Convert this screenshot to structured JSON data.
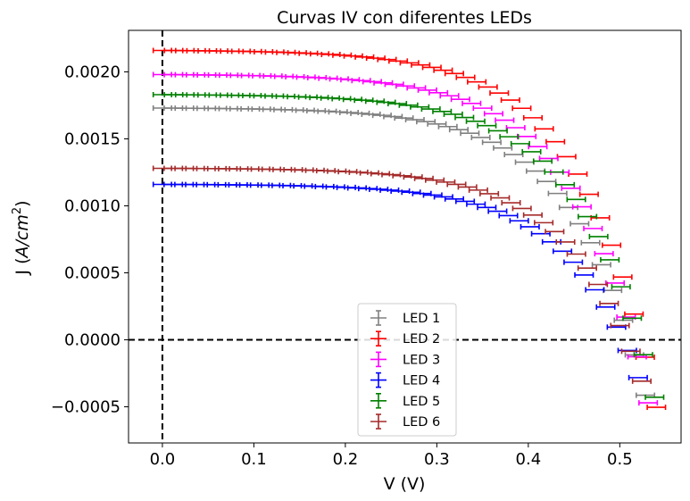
{
  "chart_data": {
    "type": "scatter",
    "title": "Curvas IV con diferentes LEDs",
    "xlabel": "V (V)",
    "ylabel_prefix": "J (",
    "ylabel_italic": "A/cm",
    "ylabel_sup": "2",
    "ylabel_suffix": ")",
    "xlim": [
      -0.037,
      0.567
    ],
    "ylim": [
      -0.00077,
      0.00231
    ],
    "xticks": [
      0.0,
      0.1,
      0.2,
      0.3,
      0.4,
      0.5
    ],
    "xtick_labels": [
      "0.0",
      "0.1",
      "0.2",
      "0.3",
      "0.4",
      "0.5"
    ],
    "yticks": [
      -0.0005,
      0.0,
      0.0005,
      0.001,
      0.0015,
      0.002
    ],
    "ytick_labels": [
      "−0.0005",
      "0.0000",
      "0.0005",
      "0.0010",
      "0.0015",
      "0.0020"
    ],
    "reference_lines": {
      "x": 0.0,
      "y": 0.0,
      "style": "dashed black"
    },
    "x_error": 0.01,
    "legend_position": "lower center",
    "series": [
      {
        "name": "LED 1",
        "color": "#808080",
        "jsc": 0.00173,
        "voc": 0.511,
        "n_points": 45
      },
      {
        "name": "LED 2",
        "color": "#ff0000",
        "jsc": 0.00216,
        "voc": 0.523,
        "n_points": 45
      },
      {
        "name": "LED 3",
        "color": "#ff00ff",
        "jsc": 0.00198,
        "voc": 0.514,
        "n_points": 45
      },
      {
        "name": "LED 4",
        "color": "#0000ff",
        "jsc": 0.00116,
        "voc": 0.503,
        "n_points": 45
      },
      {
        "name": "LED 5",
        "color": "#008000",
        "jsc": 0.00183,
        "voc": 0.521,
        "n_points": 45
      },
      {
        "name": "LED 6",
        "color": "#a52a2a",
        "jsc": 0.00128,
        "voc": 0.507,
        "n_points": 45
      }
    ]
  }
}
